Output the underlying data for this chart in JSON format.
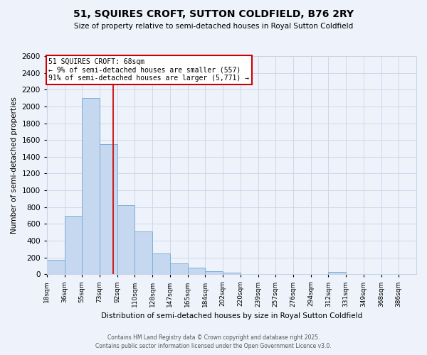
{
  "title": "51, SQUIRES CROFT, SUTTON COLDFIELD, B76 2RY",
  "subtitle": "Size of property relative to semi-detached houses in Royal Sutton Coldfield",
  "xlabel": "Distribution of semi-detached houses by size in Royal Sutton Coldfield",
  "ylabel": "Number of semi-detached properties",
  "bar_labels": [
    "18sqm",
    "36sqm",
    "55sqm",
    "73sqm",
    "92sqm",
    "110sqm",
    "128sqm",
    "147sqm",
    "165sqm",
    "184sqm",
    "202sqm",
    "220sqm",
    "239sqm",
    "257sqm",
    "276sqm",
    "294sqm",
    "312sqm",
    "331sqm",
    "349sqm",
    "368sqm",
    "386sqm"
  ],
  "bar_values": [
    170,
    700,
    2100,
    1550,
    820,
    510,
    250,
    130,
    75,
    40,
    20,
    0,
    0,
    0,
    0,
    0,
    30,
    0,
    0,
    0,
    0
  ],
  "bar_color": "#c5d8f0",
  "bar_edgecolor": "#7bafd4",
  "background_color": "#eef2fb",
  "grid_color": "#c8d4e8",
  "vline_x_bin": 3,
  "ylim": [
    0,
    2600
  ],
  "yticks": [
    0,
    200,
    400,
    600,
    800,
    1000,
    1200,
    1400,
    1600,
    1800,
    2000,
    2200,
    2400,
    2600
  ],
  "annotation_title": "51 SQUIRES CROFT: 68sqm",
  "annotation_line1": "← 9% of semi-detached houses are smaller (557)",
  "annotation_line2": "91% of semi-detached houses are larger (5,771) →",
  "annotation_box_color": "#ffffff",
  "annotation_box_edgecolor": "#cc0000",
  "footnote1": "Contains HM Land Registry data © Crown copyright and database right 2025.",
  "footnote2": "Contains public sector information licensed under the Open Government Licence v3.0.",
  "bin_width": 18,
  "n_bins": 21
}
